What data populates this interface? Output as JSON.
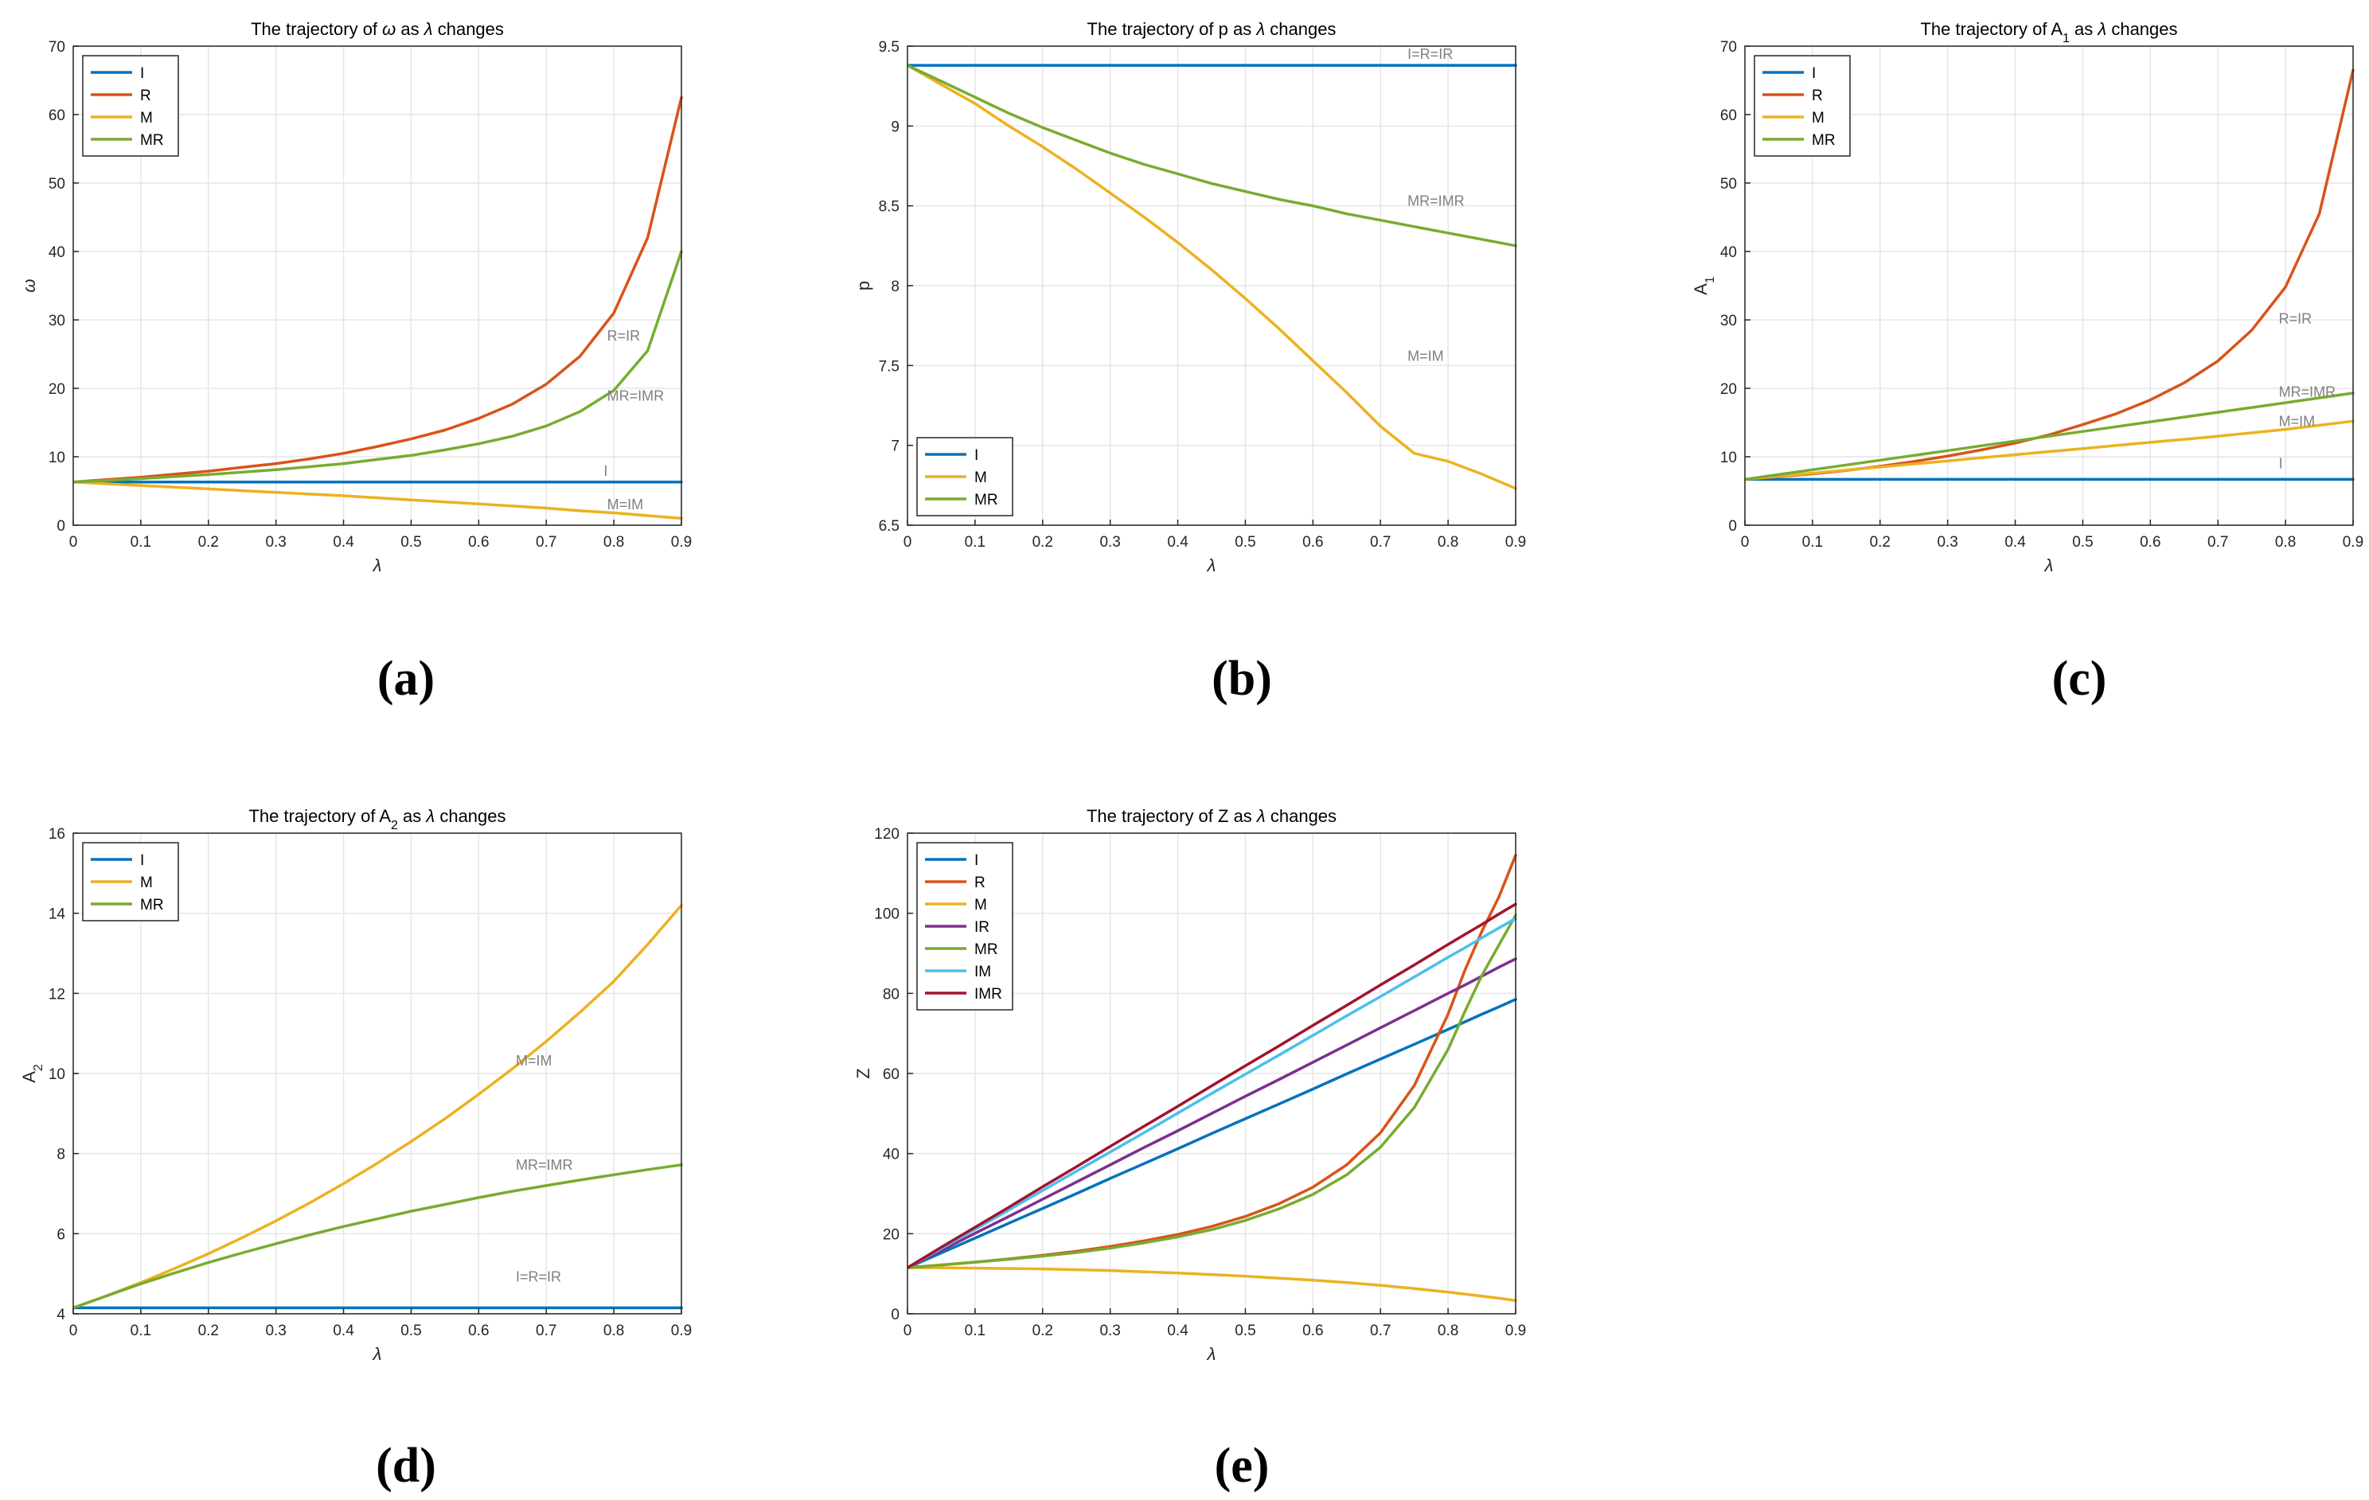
{
  "figure": {
    "subfigure_labels": [
      "(a)",
      "(b)",
      "(c)",
      "(d)",
      "(e)"
    ]
  },
  "colors": {
    "I": "#0072BD",
    "R": "#D95319",
    "M": "#EDB120",
    "IR": "#7E2F8E",
    "MR": "#77AC30",
    "IM": "#4DBEEE",
    "IMR": "#A2142F",
    "annotation": "#808080",
    "grid": "#e6e6e6",
    "axis": "#262626"
  },
  "chart_data": [
    {
      "id": "a",
      "type": "line",
      "title_parts": [
        "The trajectory of ",
        "ω",
        " as ",
        "λ",
        " changes"
      ],
      "title_italic": [
        false,
        true,
        false,
        true,
        false
      ],
      "xlabel": "λ",
      "ylabel": "ω",
      "xlim": [
        0,
        0.9
      ],
      "ylim": [
        0,
        70
      ],
      "xticks": [
        0,
        0.1,
        0.2,
        0.3,
        0.4,
        0.5,
        0.6,
        0.7,
        0.8,
        0.9
      ],
      "xtick_labels": [
        "0",
        "0.1",
        "0.2",
        "0.3",
        "0.4",
        "0.5",
        "0.6",
        "0.7",
        "0.8",
        "0.9"
      ],
      "yticks": [
        0,
        10,
        20,
        30,
        40,
        50,
        60,
        70
      ],
      "ytick_labels": [
        "0",
        "10",
        "20",
        "30",
        "40",
        "50",
        "60",
        "70"
      ],
      "legend": {
        "position": "top-left",
        "entries": [
          "I",
          "R",
          "M",
          "MR"
        ]
      },
      "x": [
        0,
        0.05,
        0.1,
        0.15,
        0.2,
        0.25,
        0.3,
        0.35,
        0.4,
        0.45,
        0.5,
        0.55,
        0.6,
        0.65,
        0.7,
        0.75,
        0.8,
        0.85,
        0.9
      ],
      "series": [
        {
          "name": "I",
          "values": [
            6.3,
            6.3,
            6.3,
            6.3,
            6.3,
            6.3,
            6.3,
            6.3,
            6.3,
            6.3,
            6.3,
            6.3,
            6.3,
            6.3,
            6.3,
            6.3,
            6.3,
            6.3,
            6.3
          ]
        },
        {
          "name": "R",
          "values": [
            6.3,
            6.66,
            7.0,
            7.45,
            7.9,
            8.45,
            9.0,
            9.7,
            10.5,
            11.5,
            12.6,
            13.9,
            15.6,
            17.7,
            20.6,
            24.7,
            31.0,
            42.0,
            62.5
          ]
        },
        {
          "name": "M",
          "values": [
            6.3,
            6.05,
            5.8,
            5.55,
            5.3,
            5.05,
            4.8,
            4.55,
            4.3,
            4.0,
            3.7,
            3.4,
            3.1,
            2.8,
            2.5,
            2.1,
            1.8,
            1.4,
            1.0
          ]
        },
        {
          "name": "MR",
          "values": [
            6.3,
            6.55,
            6.8,
            7.1,
            7.4,
            7.75,
            8.1,
            8.55,
            9.0,
            9.6,
            10.2,
            11.0,
            11.9,
            13.0,
            14.5,
            16.6,
            19.7,
            25.5,
            40.0
          ]
        }
      ],
      "annotations": [
        {
          "text": "R=IR",
          "x": 0.79,
          "y": 27
        },
        {
          "text": "MR=IMR",
          "x": 0.79,
          "y": 18.2
        },
        {
          "text": "I",
          "x": 0.785,
          "y": 7.2
        },
        {
          "text": "M=IM",
          "x": 0.79,
          "y": 2.3
        }
      ]
    },
    {
      "id": "b",
      "type": "line",
      "title_parts": [
        "The trajectory of p as ",
        "λ",
        " changes"
      ],
      "title_italic": [
        false,
        true,
        false
      ],
      "xlabel": "λ",
      "ylabel": "p",
      "xlim": [
        0,
        0.9
      ],
      "ylim": [
        6.5,
        9.5
      ],
      "xticks": [
        0,
        0.1,
        0.2,
        0.3,
        0.4,
        0.5,
        0.6,
        0.7,
        0.8,
        0.9
      ],
      "xtick_labels": [
        "0",
        "0.1",
        "0.2",
        "0.3",
        "0.4",
        "0.5",
        "0.6",
        "0.7",
        "0.8",
        "0.9"
      ],
      "yticks": [
        6.5,
        7,
        7.5,
        8,
        8.5,
        9,
        9.5
      ],
      "ytick_labels": [
        "6.5",
        "7",
        "7.5",
        "8",
        "8.5",
        "9",
        "9.5"
      ],
      "legend": {
        "position": "bottom-left",
        "entries": [
          "I",
          "M",
          "MR"
        ]
      },
      "x": [
        0,
        0.05,
        0.1,
        0.15,
        0.2,
        0.25,
        0.3,
        0.35,
        0.4,
        0.45,
        0.5,
        0.55,
        0.6,
        0.65,
        0.7,
        0.75,
        0.8,
        0.85,
        0.9
      ],
      "series": [
        {
          "name": "I",
          "values": [
            9.38,
            9.38,
            9.38,
            9.38,
            9.38,
            9.38,
            9.38,
            9.38,
            9.38,
            9.38,
            9.38,
            9.38,
            9.38,
            9.38,
            9.38,
            9.38,
            9.38,
            9.38,
            9.38
          ]
        },
        {
          "name": "M",
          "values": [
            9.38,
            9.26,
            9.14,
            9.0,
            8.87,
            8.73,
            8.58,
            8.43,
            8.27,
            8.1,
            7.92,
            7.73,
            7.53,
            7.33,
            7.12,
            6.95,
            6.9,
            6.82,
            6.73
          ]
        },
        {
          "name": "MR",
          "values": [
            9.38,
            9.28,
            9.18,
            9.08,
            8.99,
            8.91,
            8.83,
            8.76,
            8.7,
            8.64,
            8.59,
            8.54,
            8.5,
            8.45,
            8.41,
            8.37,
            8.33,
            8.29,
            8.25
          ]
        }
      ],
      "annotations": [
        {
          "text": "I=R=IR",
          "x": 0.74,
          "y": 9.42
        },
        {
          "text": "MR=IMR",
          "x": 0.74,
          "y": 8.5
        },
        {
          "text": "M=IM",
          "x": 0.74,
          "y": 7.53
        }
      ]
    },
    {
      "id": "c",
      "type": "line",
      "title_parts": [
        "The trajectory of A",
        "1",
        " as ",
        "λ",
        " changes"
      ],
      "title_italic": [
        false,
        false,
        false,
        true,
        false
      ],
      "title_sub": [
        false,
        true,
        false,
        false,
        false
      ],
      "xlabel": "λ",
      "ylabel_parts": [
        "A",
        "1"
      ],
      "xlim": [
        0,
        0.9
      ],
      "ylim": [
        0,
        70
      ],
      "xticks": [
        0,
        0.1,
        0.2,
        0.3,
        0.4,
        0.5,
        0.6,
        0.7,
        0.8,
        0.9
      ],
      "xtick_labels": [
        "0",
        "0.1",
        "0.2",
        "0.3",
        "0.4",
        "0.5",
        "0.6",
        "0.7",
        "0.8",
        "0.9"
      ],
      "yticks": [
        0,
        10,
        20,
        30,
        40,
        50,
        60,
        70
      ],
      "ytick_labels": [
        "0",
        "10",
        "20",
        "30",
        "40",
        "50",
        "60",
        "70"
      ],
      "legend": {
        "position": "top-left",
        "entries": [
          "I",
          "R",
          "M",
          "MR"
        ]
      },
      "x": [
        0,
        0.05,
        0.1,
        0.15,
        0.2,
        0.25,
        0.3,
        0.35,
        0.4,
        0.45,
        0.5,
        0.55,
        0.6,
        0.65,
        0.7,
        0.75,
        0.8,
        0.85,
        0.9
      ],
      "series": [
        {
          "name": "I",
          "values": [
            6.7,
            6.7,
            6.7,
            6.7,
            6.7,
            6.7,
            6.7,
            6.7,
            6.7,
            6.7,
            6.7,
            6.7,
            6.7,
            6.7,
            6.7,
            6.7,
            6.7,
            6.7,
            6.7
          ]
        },
        {
          "name": "R",
          "values": [
            6.7,
            7.1,
            7.5,
            8.0,
            8.6,
            9.3,
            10.1,
            11.0,
            12.0,
            13.2,
            14.7,
            16.3,
            18.3,
            20.8,
            24.0,
            28.5,
            34.8,
            45.5,
            66.5
          ]
        },
        {
          "name": "M",
          "values": [
            6.7,
            7.15,
            7.6,
            8.05,
            8.5,
            8.95,
            9.4,
            9.85,
            10.3,
            10.75,
            11.2,
            11.65,
            12.1,
            12.55,
            13.0,
            13.5,
            14.0,
            14.6,
            15.2
          ]
        },
        {
          "name": "MR",
          "values": [
            6.7,
            7.4,
            8.1,
            8.8,
            9.5,
            10.2,
            10.9,
            11.6,
            12.3,
            13.0,
            13.7,
            14.4,
            15.1,
            15.8,
            16.5,
            17.2,
            17.9,
            18.6,
            19.3
          ]
        }
      ],
      "annotations": [
        {
          "text": "R=IR",
          "x": 0.79,
          "y": 29.5
        },
        {
          "text": "MR=IMR",
          "x": 0.79,
          "y": 18.8
        },
        {
          "text": "M=IM",
          "x": 0.79,
          "y": 14.5
        },
        {
          "text": "I",
          "x": 0.79,
          "y": 8.3
        }
      ]
    },
    {
      "id": "d",
      "type": "line",
      "title_parts": [
        "The trajectory of A",
        "2",
        " as ",
        "λ",
        " changes"
      ],
      "title_italic": [
        false,
        false,
        false,
        true,
        false
      ],
      "title_sub": [
        false,
        true,
        false,
        false,
        false
      ],
      "xlabel": "λ",
      "ylabel_parts": [
        "A",
        "2"
      ],
      "xlim": [
        0,
        0.9
      ],
      "ylim": [
        4,
        16
      ],
      "xticks": [
        0,
        0.1,
        0.2,
        0.3,
        0.4,
        0.5,
        0.6,
        0.7,
        0.8,
        0.9
      ],
      "xtick_labels": [
        "0",
        "0.1",
        "0.2",
        "0.3",
        "0.4",
        "0.5",
        "0.6",
        "0.7",
        "0.8",
        "0.9"
      ],
      "yticks": [
        4,
        6,
        8,
        10,
        12,
        14,
        16
      ],
      "ytick_labels": [
        "4",
        "6",
        "8",
        "10",
        "12",
        "14",
        "16"
      ],
      "legend": {
        "position": "top-left",
        "entries": [
          "I",
          "M",
          "MR"
        ]
      },
      "x": [
        0,
        0.05,
        0.1,
        0.15,
        0.2,
        0.25,
        0.3,
        0.35,
        0.4,
        0.45,
        0.5,
        0.55,
        0.6,
        0.65,
        0.7,
        0.75,
        0.8,
        0.85,
        0.9
      ],
      "series": [
        {
          "name": "I",
          "values": [
            4.15,
            4.15,
            4.15,
            4.15,
            4.15,
            4.15,
            4.15,
            4.15,
            4.15,
            4.15,
            4.15,
            4.15,
            4.15,
            4.15,
            4.15,
            4.15,
            4.15,
            4.15,
            4.15
          ]
        },
        {
          "name": "M",
          "values": [
            4.15,
            4.45,
            4.78,
            5.13,
            5.5,
            5.9,
            6.32,
            6.77,
            7.25,
            7.76,
            8.3,
            8.87,
            9.48,
            10.12,
            10.8,
            11.53,
            12.3,
            13.22,
            14.2
          ]
        },
        {
          "name": "MR",
          "values": [
            4.15,
            4.45,
            4.75,
            5.02,
            5.28,
            5.52,
            5.75,
            5.97,
            6.18,
            6.37,
            6.56,
            6.73,
            6.9,
            7.06,
            7.2,
            7.34,
            7.47,
            7.6,
            7.72
          ]
        }
      ],
      "annotations": [
        {
          "text": "M=IM",
          "x": 0.655,
          "y": 10.2
        },
        {
          "text": "MR=IMR",
          "x": 0.655,
          "y": 7.6
        },
        {
          "text": "I=R=IR",
          "x": 0.655,
          "y": 4.8
        }
      ]
    },
    {
      "id": "e",
      "type": "line",
      "title_parts": [
        "The trajectory of Z as ",
        "λ",
        " changes"
      ],
      "title_italic": [
        false,
        true,
        false
      ],
      "xlabel": "λ",
      "ylabel": "Z",
      "xlim": [
        0,
        0.9
      ],
      "ylim": [
        0,
        120
      ],
      "xticks": [
        0,
        0.1,
        0.2,
        0.3,
        0.4,
        0.5,
        0.6,
        0.7,
        0.8,
        0.9
      ],
      "xtick_labels": [
        "0",
        "0.1",
        "0.2",
        "0.3",
        "0.4",
        "0.5",
        "0.6",
        "0.7",
        "0.8",
        "0.9"
      ],
      "yticks": [
        0,
        20,
        40,
        60,
        80,
        100,
        120
      ],
      "ytick_labels": [
        "0",
        "20",
        "40",
        "60",
        "80",
        "100",
        "120"
      ],
      "legend": {
        "position": "top-left",
        "entries": [
          "I",
          "R",
          "M",
          "IR",
          "MR",
          "IM",
          "IMR"
        ]
      },
      "x": [
        0,
        0.05,
        0.1,
        0.15,
        0.2,
        0.25,
        0.3,
        0.35,
        0.4,
        0.45,
        0.5,
        0.55,
        0.6,
        0.65,
        0.7,
        0.75,
        0.8,
        0.825,
        0.85,
        0.875,
        0.9
      ],
      "series": [
        {
          "name": "I",
          "values": [
            11.5,
            15.2,
            18.9,
            22.6,
            26.3,
            30.0,
            33.8,
            37.5,
            41.2,
            45.0,
            48.7,
            52.4,
            56.1,
            59.9,
            63.6,
            67.3,
            71.0,
            72.9,
            74.8,
            76.6,
            78.5
          ]
        },
        {
          "name": "R",
          "values": [
            11.5,
            12.2,
            12.9,
            13.7,
            14.6,
            15.6,
            16.8,
            18.2,
            19.8,
            21.8,
            24.3,
            27.5,
            31.6,
            37.2,
            45.2,
            57.0,
            74.8,
            85.8,
            95.5,
            104.0,
            114.5
          ]
        },
        {
          "name": "M",
          "values": [
            11.5,
            11.5,
            11.4,
            11.3,
            11.2,
            11.0,
            10.8,
            10.5,
            10.2,
            9.8,
            9.4,
            8.9,
            8.4,
            7.8,
            7.1,
            6.3,
            5.4,
            4.9,
            4.4,
            3.9,
            3.3
          ]
        },
        {
          "name": "IR",
          "values": [
            11.5,
            15.8,
            20.1,
            24.3,
            28.6,
            32.9,
            37.2,
            41.5,
            45.7,
            50.0,
            54.3,
            58.5,
            62.8,
            67.1,
            71.4,
            75.7,
            80.0,
            82.1,
            84.3,
            86.5,
            88.6
          ]
        },
        {
          "name": "MR",
          "values": [
            11.5,
            12.2,
            12.9,
            13.6,
            14.4,
            15.3,
            16.4,
            17.7,
            19.2,
            21.0,
            23.3,
            26.2,
            29.8,
            34.7,
            41.6,
            51.5,
            66.0,
            75.5,
            84.5,
            92.0,
            99.5
          ]
        },
        {
          "name": "IM",
          "values": [
            11.5,
            16.3,
            21.1,
            25.9,
            30.8,
            35.6,
            40.4,
            45.2,
            50.1,
            55.0,
            59.8,
            64.6,
            69.5,
            74.4,
            79.2,
            84.1,
            89.0,
            91.4,
            93.9,
            96.3,
            98.7
          ]
        },
        {
          "name": "IMR",
          "values": [
            11.5,
            16.6,
            21.6,
            26.6,
            31.7,
            36.7,
            41.8,
            46.8,
            51.8,
            56.9,
            61.9,
            66.9,
            72.0,
            77.0,
            82.1,
            87.1,
            92.2,
            94.7,
            97.2,
            99.8,
            102.3
          ]
        }
      ],
      "annotations": []
    }
  ]
}
